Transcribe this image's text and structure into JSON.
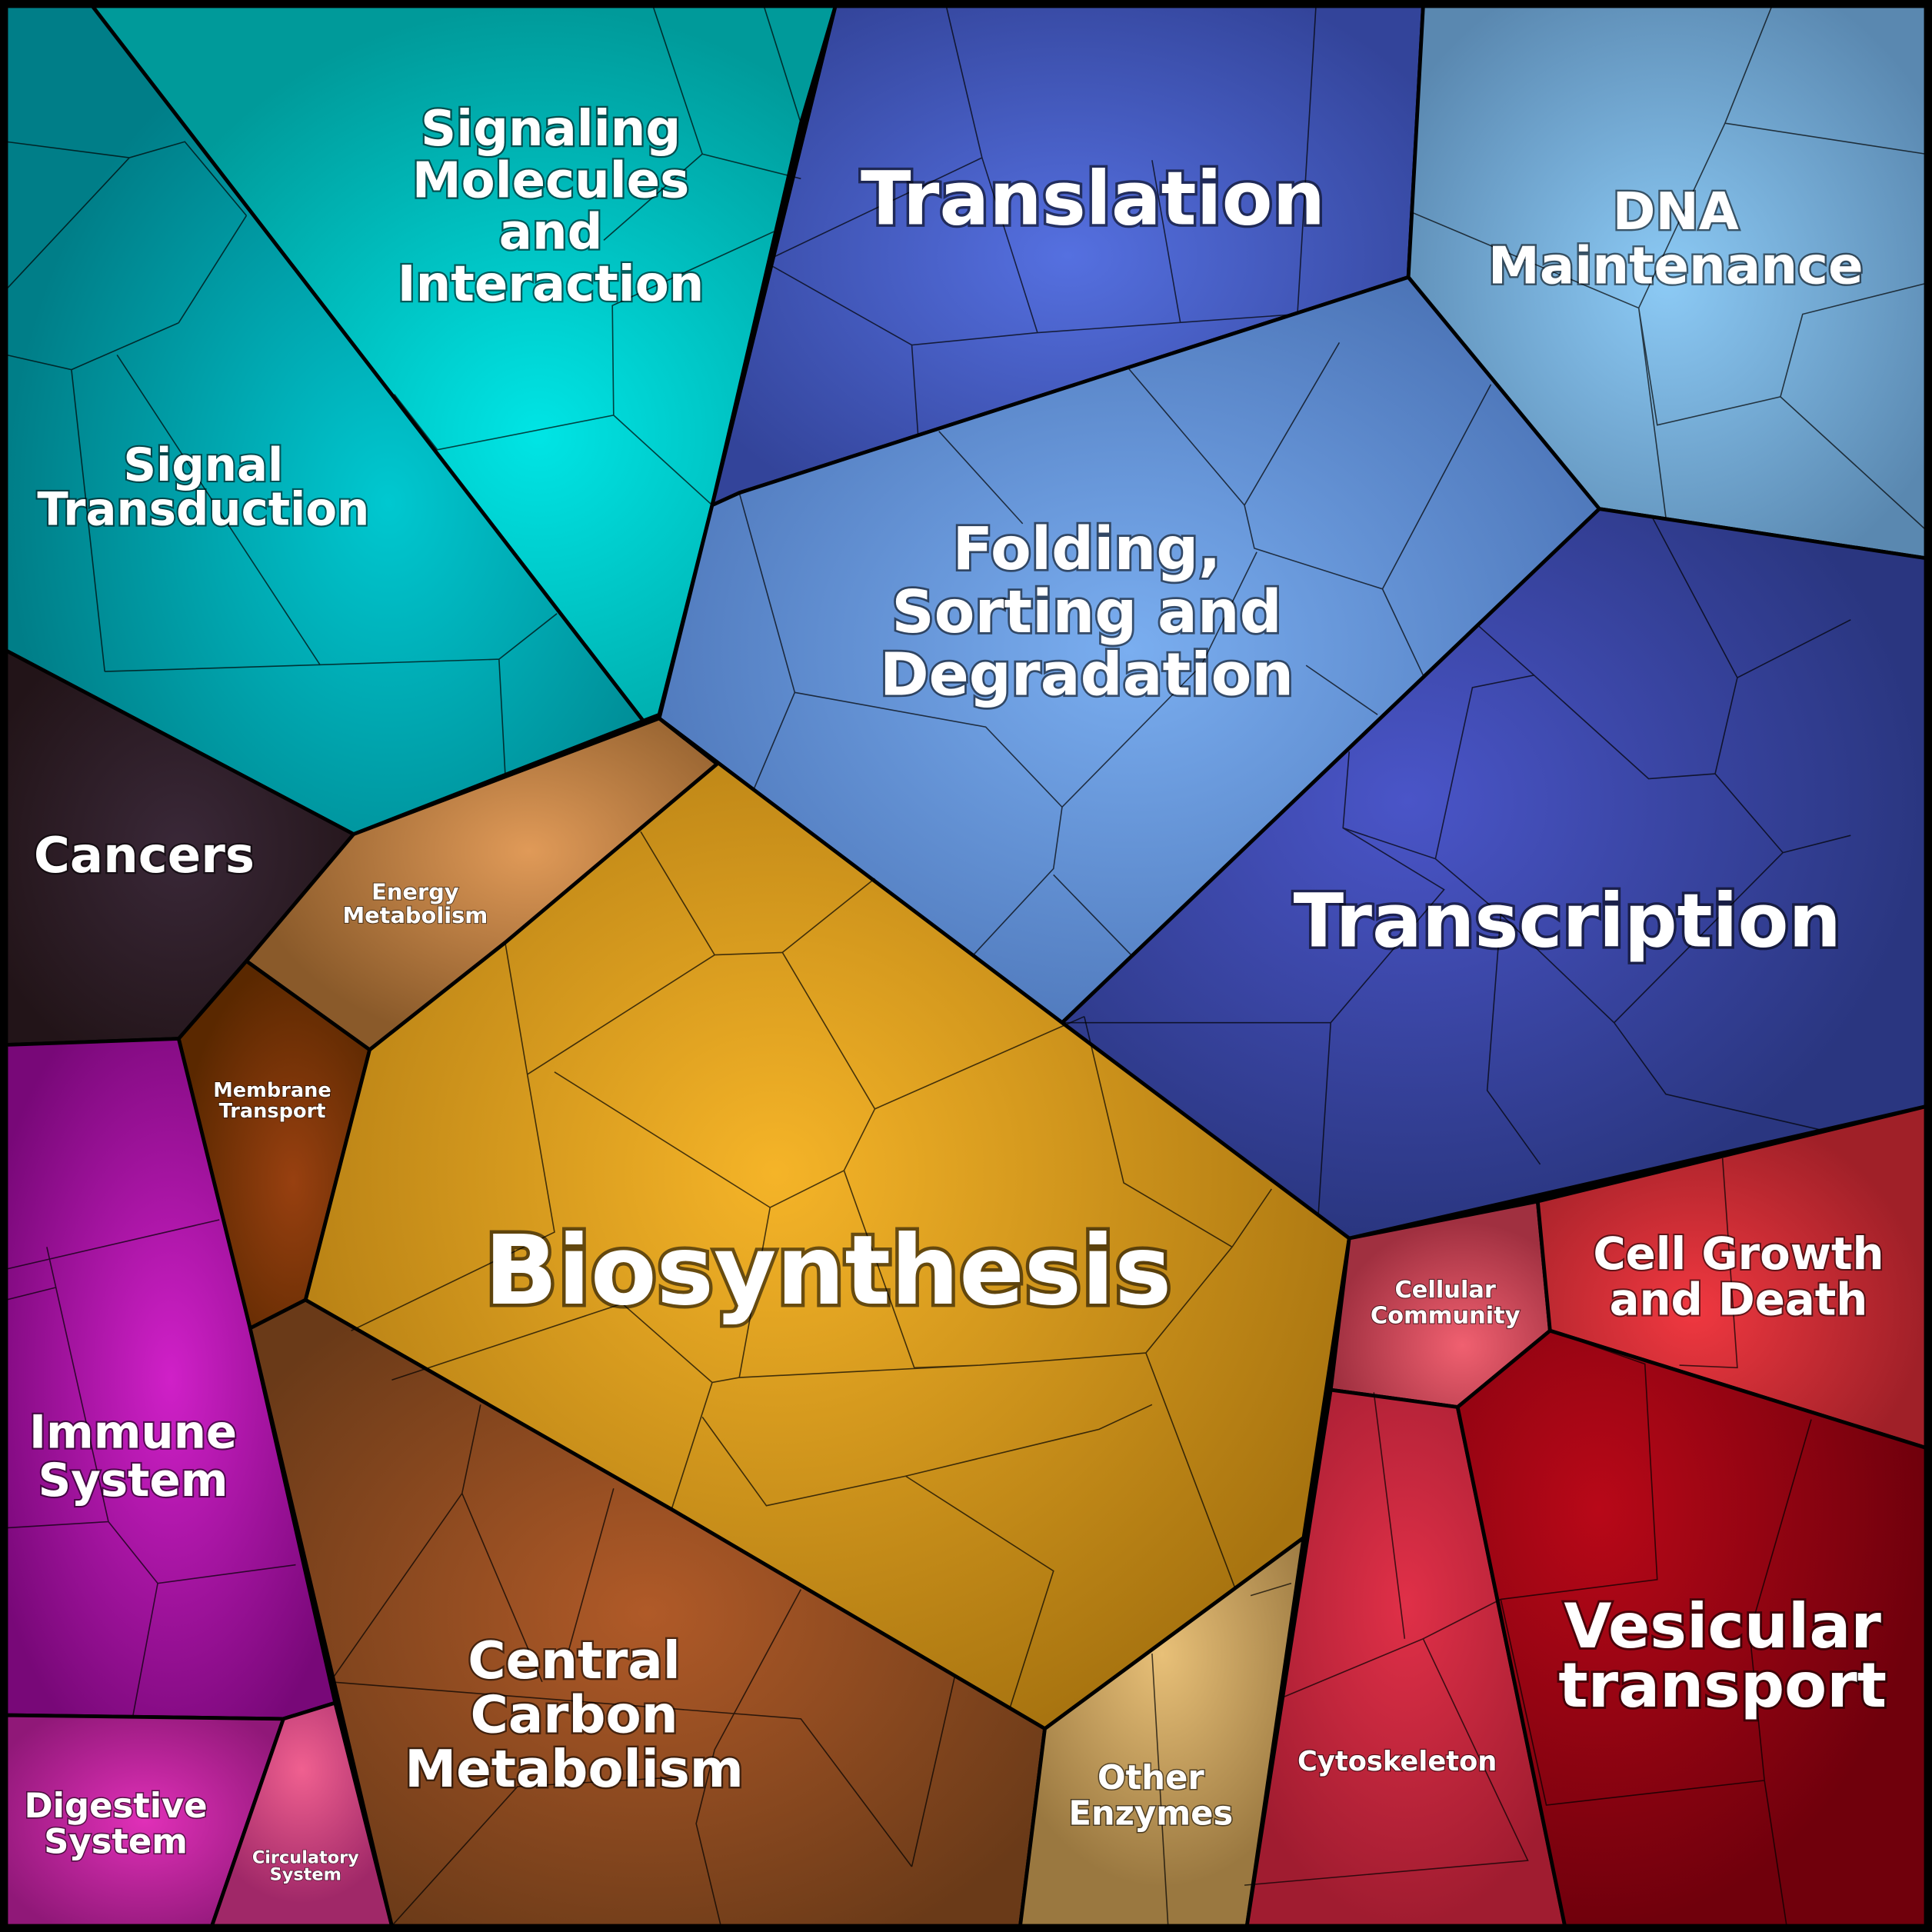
{
  "regions": [
    {
      "lines": [
        "Signaling",
        "Molecules",
        "and",
        "Interaction"
      ]
    },
    {
      "lines": [
        "Signal",
        "Transduction"
      ]
    },
    {
      "lines": [
        "Translation"
      ]
    },
    {
      "lines": [
        "DNA",
        "Maintenance"
      ]
    },
    {
      "lines": [
        "Folding,",
        "Sorting and",
        "Degradation"
      ]
    },
    {
      "lines": [
        "Transcription"
      ]
    },
    {
      "lines": [
        "Cancers"
      ]
    },
    {
      "lines": [
        "Energy",
        "Metabolism"
      ]
    },
    {
      "lines": [
        "Membrane",
        "Transport"
      ]
    },
    {
      "lines": [
        "Biosynthesis"
      ]
    },
    {
      "lines": [
        "Immune",
        "System"
      ]
    },
    {
      "lines": [
        "Digestive",
        "System"
      ]
    },
    {
      "lines": [
        "Circulatory",
        "System"
      ]
    },
    {
      "lines": [
        "Central",
        "Carbon",
        "Metabolism"
      ]
    },
    {
      "lines": [
        "Other",
        "Enzymes"
      ]
    },
    {
      "lines": [
        "Cellular",
        "Community"
      ]
    },
    {
      "lines": [
        "Cell Growth",
        "and Death"
      ]
    },
    {
      "lines": [
        "Cytoskeleton"
      ]
    },
    {
      "lines": [
        "Vesicular",
        "transport"
      ]
    }
  ]
}
